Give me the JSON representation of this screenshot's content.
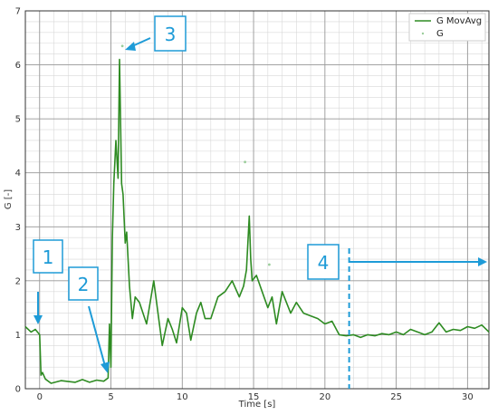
{
  "chart_data": {
    "type": "line",
    "xlabel": "Time [s]",
    "ylabel": "G [-]",
    "xlim": [
      -1,
      31.5
    ],
    "ylim": [
      0,
      7
    ],
    "xticks": [
      0,
      5,
      10,
      15,
      20,
      25,
      30
    ],
    "yticks": [
      0,
      1,
      2,
      3,
      4,
      5,
      6,
      7
    ],
    "grid": true,
    "legend_position": "top-right",
    "series": [
      {
        "name": "G MovAvg",
        "color": "#2e8b22",
        "x": [
          -1,
          -0.6,
          -0.3,
          0,
          0.1,
          0.2,
          0.4,
          0.8,
          1.5,
          2.5,
          3,
          3.5,
          4,
          4.5,
          4.8,
          4.9,
          5.0,
          5.1,
          5.2,
          5.35,
          5.5,
          5.6,
          5.75,
          5.85,
          6.0,
          6.1,
          6.3,
          6.5,
          6.7,
          7.0,
          7.5,
          8.0,
          8.3,
          8.6,
          9.0,
          9.3,
          9.6,
          10.0,
          10.3,
          10.6,
          11.0,
          11.3,
          11.6,
          12.0,
          12.5,
          13.0,
          13.5,
          14.0,
          14.3,
          14.5,
          14.7,
          14.8,
          14.9,
          15.2,
          15.6,
          16.0,
          16.3,
          16.6,
          17.0,
          17.3,
          17.6,
          18.0,
          18.5,
          19.0,
          19.5,
          20.0,
          20.5,
          21.0,
          21.5,
          22.0,
          22.5,
          23.0,
          23.5,
          24.0,
          24.5,
          25.0,
          25.5,
          26.0,
          26.5,
          27.0,
          27.5,
          28.0,
          28.5,
          29.0,
          29.5,
          30.0,
          30.5,
          31.0,
          31.5
        ],
        "values": [
          1.15,
          1.05,
          1.1,
          1.0,
          0.25,
          0.3,
          0.18,
          0.1,
          0.15,
          0.12,
          0.17,
          0.12,
          0.16,
          0.14,
          0.2,
          1.2,
          0.4,
          2.8,
          3.8,
          4.6,
          3.9,
          6.1,
          3.8,
          3.6,
          2.7,
          2.9,
          1.9,
          1.3,
          1.7,
          1.6,
          1.2,
          2.0,
          1.4,
          0.8,
          1.3,
          1.1,
          0.85,
          1.5,
          1.4,
          0.9,
          1.4,
          1.6,
          1.3,
          1.3,
          1.7,
          1.8,
          2.0,
          1.7,
          1.9,
          2.2,
          3.2,
          2.4,
          2.0,
          2.1,
          1.8,
          1.5,
          1.7,
          1.2,
          1.8,
          1.6,
          1.4,
          1.6,
          1.4,
          1.35,
          1.3,
          1.2,
          1.25,
          1.0,
          0.98,
          1.0,
          0.95,
          1.0,
          0.98,
          1.02,
          1.0,
          1.05,
          1.0,
          1.1,
          1.05,
          1.0,
          1.05,
          1.22,
          1.05,
          1.1,
          1.08,
          1.15,
          1.12,
          1.18,
          1.05
        ]
      },
      {
        "name": "G",
        "color": "#9acd9a",
        "x": [
          5.8,
          14.4,
          16.1
        ],
        "values": [
          6.35,
          4.2,
          2.3
        ]
      }
    ]
  },
  "annotations": {
    "callouts": [
      {
        "label": "1"
      },
      {
        "label": "2"
      },
      {
        "label": "3"
      },
      {
        "label": "4"
      }
    ],
    "callout_color": "#1e9bd7",
    "marker_line_x": 21.7
  }
}
